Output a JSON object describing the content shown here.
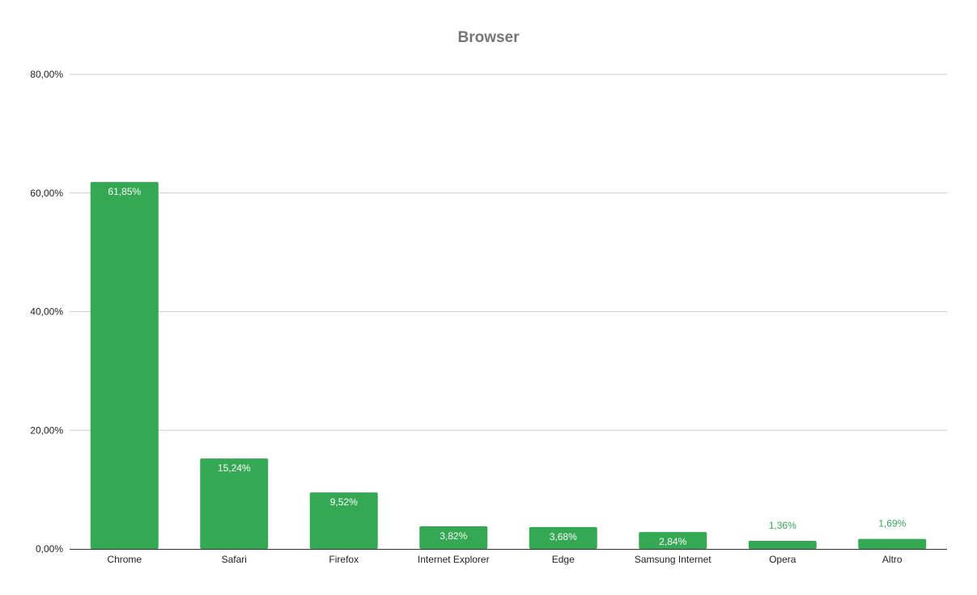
{
  "chart_data": {
    "type": "bar",
    "title": "Browser",
    "xlabel": "",
    "ylabel": "",
    "categories": [
      "Chrome",
      "Safari",
      "Firefox",
      "Internet Explorer",
      "Edge",
      "Samsung Internet",
      "Opera",
      "Altro"
    ],
    "values": [
      61.85,
      15.24,
      9.52,
      3.82,
      3.68,
      2.84,
      1.36,
      1.69
    ],
    "value_labels": [
      "61,85%",
      "15,24%",
      "9,52%",
      "3,82%",
      "3,68%",
      "2,84%",
      "1,36%",
      "1,69%"
    ],
    "ylim": [
      0,
      80
    ],
    "yticks": [
      0,
      20,
      40,
      60,
      80
    ],
    "ytick_labels": [
      "0,00%",
      "20,00%",
      "40,00%",
      "60,00%",
      "80,00%"
    ],
    "grid": true,
    "legend": "none",
    "colors": {
      "bar": "#34a853",
      "label_inside": "#ffffff",
      "label_outside": "#34a853",
      "grid": "#cccccc",
      "axis": "#333333",
      "title": "#757575"
    }
  }
}
